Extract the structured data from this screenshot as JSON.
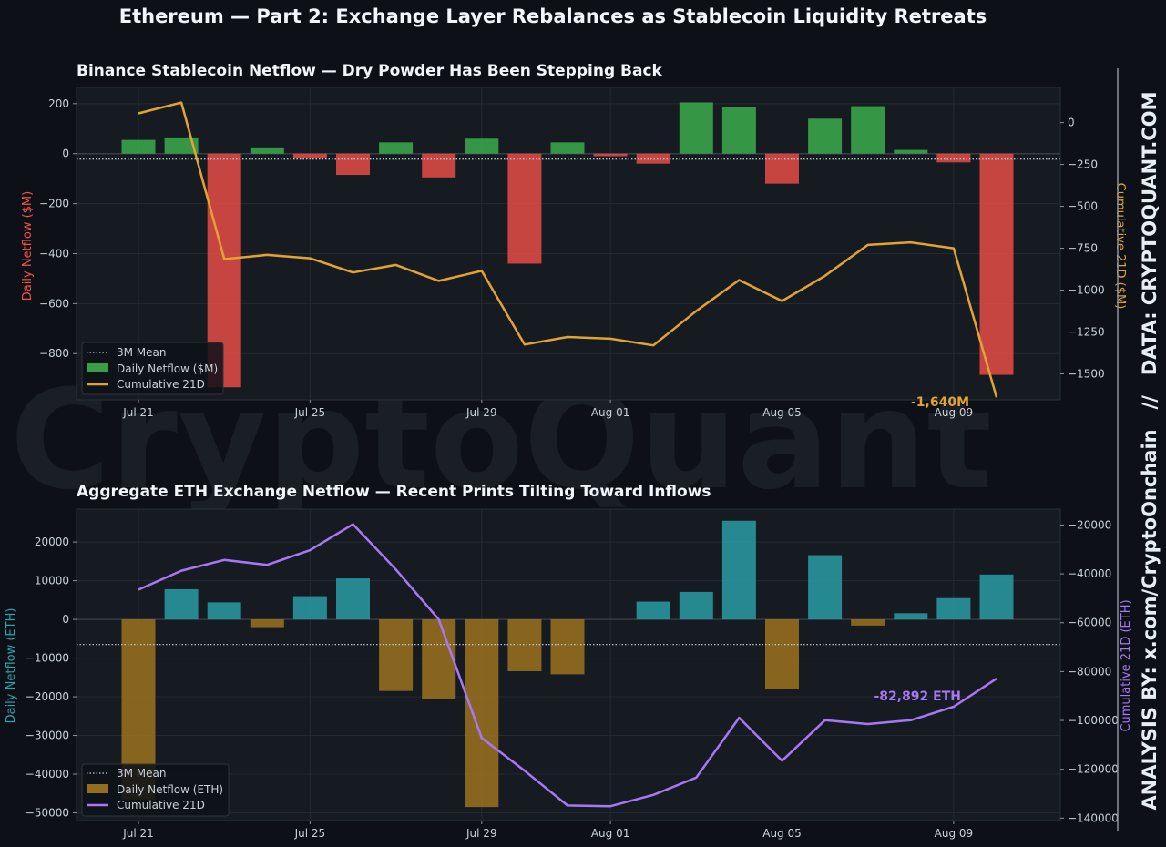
{
  "title": "Ethereum — Part 2: Exchange Layer Rebalances as Stablecoin Liquidity Retreats",
  "watermark": "CryptoQuant",
  "side_credit": "ANALYSIS BY: x.com/CryptoOnchain   //   DATA: CRYPTOQUANT.COM",
  "colors": {
    "background": "#0d1117",
    "panel": "#161b22",
    "positive_bar_top": "#3fb950",
    "negative_bar_top": "#f85149",
    "cumulative_top": "#e3a332",
    "positive_bar_bottom": "#2ba4ae",
    "negative_bar_bottom": "#a4781f",
    "cumulative_bottom": "#a877f5",
    "mean_line": "#c9d1d9"
  },
  "chart_data": [
    {
      "type": "bar",
      "title": "Binance Stablecoin Netflow — Dry Powder Has Been Stepping Back",
      "x_tick_labels": [
        "Jul 21",
        "Jul 25",
        "Jul 29",
        "Aug 01",
        "Aug 05",
        "Aug 09"
      ],
      "x_tick_indices": [
        0,
        4,
        8,
        11,
        15,
        19
      ],
      "categories": [
        "Jul 21",
        "Jul 22",
        "Jul 23",
        "Jul 24",
        "Jul 25",
        "Jul 26",
        "Jul 27",
        "Jul 28",
        "Jul 29",
        "Jul 30",
        "Jul 31",
        "Aug 01",
        "Aug 02",
        "Aug 03",
        "Aug 04",
        "Aug 05",
        "Aug 06",
        "Aug 07",
        "Aug 08",
        "Aug 09",
        "Aug 10"
      ],
      "ylabel": "Daily Netflow ($M)",
      "y2label": "Cumulative 21D ($M)",
      "ylim": [
        -985,
        265
      ],
      "y_ticks": [
        200,
        0,
        -200,
        -400,
        -600,
        -800
      ],
      "y_tick_labels": [
        "200",
        "0",
        "−200",
        "−400",
        "−600",
        "−800"
      ],
      "y2lim": [
        -1655,
        210
      ],
      "y2_ticks": [
        0,
        -250,
        -500,
        -750,
        -1000,
        -1250,
        -1500
      ],
      "y2_tick_labels": [
        "0",
        "−250",
        "−500",
        "−750",
        "−1000",
        "−1250",
        "−1500"
      ],
      "series": [
        {
          "name": "Daily Netflow ($M)",
          "type": "bar",
          "values": [
            55,
            65,
            -935,
            25,
            -20,
            -85,
            45,
            -95,
            60,
            -440,
            45,
            -10,
            -40,
            205,
            185,
            -120,
            140,
            190,
            15,
            -35,
            -885
          ]
        },
        {
          "name": "Cumulative 21D",
          "type": "line",
          "values": [
            55,
            120,
            -815,
            -790,
            -810,
            -895,
            -850,
            -945,
            -885,
            -1325,
            -1280,
            -1290,
            -1330,
            -1125,
            -940,
            -1065,
            -915,
            -730,
            -715,
            -750,
            -1640
          ]
        },
        {
          "name": "3M Mean",
          "type": "hline",
          "value": -22
        }
      ],
      "annotation": "-1,640M",
      "legend": "lower-left",
      "grid": true
    },
    {
      "type": "bar",
      "title": "Aggregate ETH Exchange Netflow — Recent Prints Tilting Toward Inflows",
      "x_tick_labels": [
        "Jul 21",
        "Jul 25",
        "Jul 29",
        "Aug 01",
        "Aug 05",
        "Aug 09"
      ],
      "x_tick_indices": [
        0,
        4,
        8,
        11,
        15,
        19
      ],
      "categories": [
        "Jul 21",
        "Jul 22",
        "Jul 23",
        "Jul 24",
        "Jul 25",
        "Jul 26",
        "Jul 27",
        "Jul 28",
        "Jul 29",
        "Jul 30",
        "Jul 31",
        "Aug 01",
        "Aug 02",
        "Aug 03",
        "Aug 04",
        "Aug 05",
        "Aug 06",
        "Aug 07",
        "Aug 08",
        "Aug 09",
        "Aug 10"
      ],
      "ylabel": "Daily Netflow (ETH)",
      "y2label": "Cumulative 21D (ETH)",
      "ylim": [
        -52000,
        28500
      ],
      "y_ticks": [
        20000,
        10000,
        0,
        -10000,
        -20000,
        -30000,
        -40000,
        -50000
      ],
      "y_tick_labels": [
        "20000",
        "10000",
        "0",
        "−10000",
        "−20000",
        "−30000",
        "−40000",
        "−50000"
      ],
      "y2lim": [
        -141000,
        -13500
      ],
      "y2_ticks": [
        -20000,
        -40000,
        -60000,
        -80000,
        -100000,
        -120000,
        -140000
      ],
      "y2_tick_labels": [
        "−20000",
        "−40000",
        "−60000",
        "−80000",
        "−100000",
        "−120000",
        "−140000"
      ],
      "series": [
        {
          "name": "Daily Netflow (ETH)",
          "type": "bar",
          "values": [
            -46500,
            7800,
            4400,
            -2000,
            6000,
            10600,
            -18500,
            -20500,
            -48500,
            -13400,
            -14200,
            0,
            4600,
            7100,
            25500,
            -18100,
            16600,
            -1600,
            1600,
            5500,
            11600
          ]
        },
        {
          "name": "Cumulative 21D",
          "type": "line",
          "values": [
            -46500,
            -38700,
            -34300,
            -36300,
            -30300,
            -19700,
            -38200,
            -58700,
            -107200,
            -120600,
            -134800,
            -135100,
            -130500,
            -123400,
            -98900,
            -116500,
            -99900,
            -101500,
            -99900,
            -94400,
            -82892
          ]
        },
        {
          "name": "3M Mean",
          "type": "hline",
          "value": -6500
        }
      ],
      "annotation": "-82,892 ETH",
      "legend": "lower-left",
      "grid": true
    }
  ]
}
